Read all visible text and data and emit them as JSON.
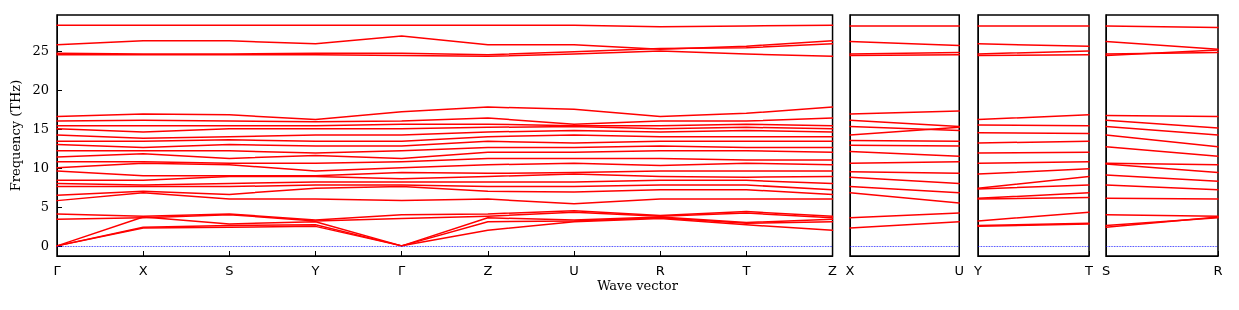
{
  "chart_data": [
    {
      "type": "line",
      "ylabel": "Frequency (THz)",
      "xlabel": "Wave vector",
      "color": "#ff0000",
      "ylim": [
        -1.3,
        29.6
      ],
      "yticks": [
        0,
        5,
        10,
        15,
        20,
        25
      ],
      "categories": [
        "Γ",
        "X",
        "S",
        "Y",
        "Γ",
        "Z",
        "U",
        "R",
        "T",
        "Z"
      ],
      "ref_lines": [
        {
          "axis": "y",
          "value": 0,
          "color": "#0000ff",
          "line_style": "dotted"
        }
      ],
      "series": [
        {
          "values": [
            28.3,
            28.3,
            28.3,
            28.3,
            28.3,
            28.3,
            28.3,
            28.1,
            28.2,
            28.3
          ]
        },
        {
          "values": [
            25.8,
            26.3,
            26.3,
            25.9,
            26.9,
            25.8,
            25.8,
            25.2,
            25.6,
            26.3
          ]
        },
        {
          "values": [
            24.7,
            24.6,
            24.6,
            24.7,
            24.7,
            24.5,
            24.9,
            25.3,
            25.4,
            25.9
          ]
        },
        {
          "values": [
            24.5,
            24.5,
            24.5,
            24.5,
            24.4,
            24.3,
            24.6,
            25.0,
            24.6,
            24.3
          ]
        },
        {
          "values": [
            5.8,
            6.8,
            6.0,
            6.0,
            5.8,
            6.0,
            5.4,
            6.0,
            6.0,
            6.0
          ]
        },
        {
          "values": [
            6.5,
            7.0,
            6.6,
            7.4,
            7.6,
            7.0,
            6.9,
            7.2,
            7.2,
            6.6
          ]
        },
        {
          "values": [
            7.6,
            7.6,
            7.6,
            7.8,
            7.8,
            7.6,
            7.6,
            7.8,
            7.8,
            7.2
          ]
        },
        {
          "values": [
            8.0,
            7.8,
            8.0,
            8.2,
            8.2,
            8.2,
            8.2,
            8.4,
            8.4,
            8.0
          ]
        },
        {
          "values": [
            8.4,
            8.4,
            8.9,
            8.9,
            8.6,
            8.9,
            9.2,
            8.9,
            8.8,
            8.9
          ]
        },
        {
          "values": [
            9.6,
            9.0,
            9.0,
            9.0,
            9.4,
            9.3,
            9.4,
            9.6,
            9.6,
            9.6
          ]
        },
        {
          "values": [
            10.0,
            10.6,
            10.4,
            9.6,
            10.0,
            10.4,
            10.6,
            10.3,
            10.6,
            10.4
          ]
        },
        {
          "values": [
            10.8,
            10.8,
            10.6,
            10.6,
            10.8,
            11.2,
            11.2,
            11.2,
            11.0,
            11.0
          ]
        },
        {
          "values": [
            11.4,
            11.8,
            11.2,
            11.6,
            11.2,
            12.0,
            12.0,
            12.2,
            12.2,
            12.0
          ]
        },
        {
          "values": [
            12.2,
            12.2,
            12.2,
            11.9,
            12.2,
            12.6,
            12.6,
            12.8,
            12.6,
            12.6
          ]
        },
        {
          "values": [
            13.0,
            12.6,
            13.0,
            12.8,
            12.8,
            13.4,
            13.2,
            13.4,
            13.4,
            13.4
          ]
        },
        {
          "values": [
            13.4,
            13.4,
            13.6,
            13.4,
            13.4,
            14.0,
            14.2,
            14.0,
            14.0,
            14.0
          ]
        },
        {
          "values": [
            14.2,
            13.8,
            14.0,
            14.2,
            14.2,
            14.6,
            14.8,
            14.6,
            14.8,
            14.6
          ]
        },
        {
          "values": [
            15.0,
            14.6,
            15.0,
            15.0,
            15.0,
            15.2,
            15.3,
            15.0,
            15.2,
            15.0
          ]
        },
        {
          "values": [
            15.4,
            15.4,
            15.4,
            15.4,
            15.6,
            15.6,
            15.4,
            15.4,
            15.6,
            15.4
          ]
        },
        {
          "values": [
            16.0,
            16.1,
            16.0,
            15.9,
            16.0,
            16.4,
            15.6,
            16.0,
            16.0,
            16.4
          ]
        },
        {
          "values": [
            16.6,
            16.9,
            16.8,
            16.2,
            17.2,
            17.8,
            17.5,
            16.6,
            17.0,
            17.8
          ]
        },
        {
          "values": [
            3.4,
            3.6,
            4.0,
            3.2,
            3.5,
            3.8,
            4.3,
            3.8,
            4.2,
            3.6
          ]
        },
        {
          "values": [
            4.1,
            3.8,
            4.1,
            3.3,
            4.0,
            4.1,
            4.5,
            3.9,
            4.4,
            3.8
          ]
        },
        {
          "values": [
            0,
            2.3,
            2.4,
            2.5,
            0,
            2.0,
            3.1,
            3.5,
            2.7,
            2.0
          ]
        },
        {
          "values": [
            0,
            2.4,
            2.6,
            2.7,
            0,
            3.1,
            3.2,
            3.6,
            2.9,
            3.1
          ]
        },
        {
          "values": [
            0,
            3.7,
            2.8,
            3.1,
            0,
            3.6,
            3.3,
            3.7,
            3.0,
            3.4
          ]
        }
      ]
    },
    {
      "type": "line",
      "color": "#ff0000",
      "ylim": [
        -1.3,
        29.6
      ],
      "yticks": [
        0,
        5,
        10,
        15,
        20,
        25
      ],
      "tick_labels": "x",
      "categories": [
        "X",
        "U"
      ],
      "ref_lines": [
        {
          "axis": "y",
          "value": 0,
          "color": "#0000ff",
          "line_style": "dotted"
        }
      ],
      "series": [
        {
          "values": [
            28.2,
            28.2
          ]
        },
        {
          "values": [
            26.2,
            25.7
          ]
        },
        {
          "values": [
            24.6,
            24.8
          ]
        },
        {
          "values": [
            24.4,
            24.5
          ]
        },
        {
          "values": [
            16.9,
            17.3
          ]
        },
        {
          "values": [
            16.1,
            15.3
          ]
        },
        {
          "values": [
            15.3,
            14.8
          ]
        },
        {
          "values": [
            14.2,
            15.2
          ]
        },
        {
          "values": [
            13.5,
            13.4
          ]
        },
        {
          "values": [
            12.9,
            12.8
          ]
        },
        {
          "values": [
            12.1,
            11.5
          ]
        },
        {
          "values": [
            10.6,
            10.8
          ]
        },
        {
          "values": [
            9.5,
            9.3
          ]
        },
        {
          "values": [
            8.8,
            8.0
          ]
        },
        {
          "values": [
            7.6,
            6.8
          ]
        },
        {
          "values": [
            6.8,
            5.5
          ]
        },
        {
          "values": [
            3.6,
            4.2
          ]
        },
        {
          "values": [
            2.3,
            3.1
          ]
        }
      ]
    },
    {
      "type": "line",
      "color": "#ff0000",
      "ylim": [
        -1.3,
        29.6
      ],
      "yticks": [
        0,
        5,
        10,
        15,
        20,
        25
      ],
      "tick_labels": "x",
      "categories": [
        "Y",
        "T"
      ],
      "ref_lines": [
        {
          "axis": "y",
          "value": 0,
          "color": "#0000ff",
          "line_style": "dotted"
        }
      ],
      "series": [
        {
          "values": [
            28.2,
            28.2
          ]
        },
        {
          "values": [
            25.9,
            25.6
          ]
        },
        {
          "values": [
            24.6,
            25.0
          ]
        },
        {
          "values": [
            24.4,
            24.5
          ]
        },
        {
          "values": [
            16.2,
            16.8
          ]
        },
        {
          "values": [
            15.5,
            15.4
          ]
        },
        {
          "values": [
            14.5,
            14.4
          ]
        },
        {
          "values": [
            13.2,
            13.4
          ]
        },
        {
          "values": [
            11.9,
            12.0
          ]
        },
        {
          "values": [
            10.6,
            10.8
          ]
        },
        {
          "values": [
            9.2,
            9.9
          ]
        },
        {
          "values": [
            7.4,
            8.9
          ]
        },
        {
          "values": [
            7.3,
            7.8
          ]
        },
        {
          "values": [
            6.1,
            6.8
          ]
        },
        {
          "values": [
            6.0,
            6.2
          ]
        },
        {
          "values": [
            3.2,
            4.3
          ]
        },
        {
          "values": [
            2.6,
            2.9
          ]
        },
        {
          "values": [
            2.5,
            2.8
          ]
        }
      ]
    },
    {
      "type": "line",
      "color": "#ff0000",
      "ylim": [
        -1.3,
        29.6
      ],
      "yticks": [
        0,
        5,
        10,
        15,
        20,
        25
      ],
      "tick_labels": "x",
      "categories": [
        "S",
        "R"
      ],
      "ref_lines": [
        {
          "axis": "y",
          "value": 0,
          "color": "#0000ff",
          "line_style": "dotted"
        }
      ],
      "series": [
        {
          "values": [
            28.2,
            28.0
          ]
        },
        {
          "values": [
            26.2,
            25.2
          ]
        },
        {
          "values": [
            24.6,
            24.8
          ]
        },
        {
          "values": [
            24.4,
            25.1
          ]
        },
        {
          "values": [
            16.7,
            16.6
          ]
        },
        {
          "values": [
            16.1,
            15.1
          ]
        },
        {
          "values": [
            15.3,
            14.2
          ]
        },
        {
          "values": [
            14.2,
            12.7
          ]
        },
        {
          "values": [
            12.7,
            11.5
          ]
        },
        {
          "values": [
            10.6,
            10.4
          ]
        },
        {
          "values": [
            10.5,
            9.4
          ]
        },
        {
          "values": [
            9.1,
            8.3
          ]
        },
        {
          "values": [
            7.8,
            7.2
          ]
        },
        {
          "values": [
            6.1,
            6.0
          ]
        },
        {
          "values": [
            4.0,
            3.8
          ]
        },
        {
          "values": [
            2.4,
            3.7
          ]
        },
        {
          "values": [
            2.6,
            3.6
          ]
        }
      ]
    }
  ]
}
